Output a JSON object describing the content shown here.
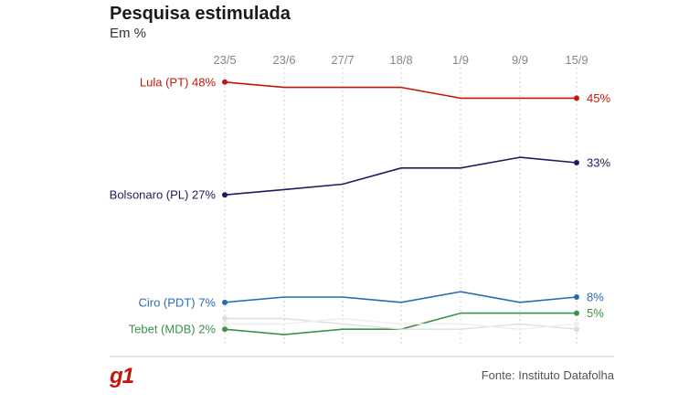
{
  "header": {
    "title": "Pesquisa estimulada",
    "subtitle": "Em %"
  },
  "footer": {
    "logo": "g1",
    "source": "Fonte: Instituto Datafolha"
  },
  "chart_data": {
    "type": "line",
    "title": "Pesquisa estimulada",
    "subtitle": "Em %",
    "x": [
      "23/5",
      "23/6",
      "27/7",
      "18/8",
      "1/9",
      "9/9",
      "15/9"
    ],
    "ylim": [
      0,
      50
    ],
    "grid": "vertical dotted",
    "series": [
      {
        "name": "Lula (PT)",
        "start_label": "Lula (PT) 48%",
        "end_label": "45%",
        "color": "#c4170c",
        "values": [
          48,
          47,
          47,
          47,
          45,
          45,
          45
        ]
      },
      {
        "name": "Bolsonaro (PL)",
        "start_label": "Bolsonaro (PL) 27%",
        "end_label": "33%",
        "color": "#1c1c5e",
        "values": [
          27,
          28,
          29,
          32,
          32,
          34,
          33
        ]
      },
      {
        "name": "Ciro (PDT)",
        "start_label": "Ciro (PDT) 7%",
        "end_label": "8%",
        "color": "#2b6cb0",
        "values": [
          7,
          8,
          8,
          7,
          9,
          7,
          8
        ]
      },
      {
        "name": "Tebet (MDB)",
        "start_label": "Tebet (MDB) 2%",
        "end_label": "5%",
        "color": "#3d9148",
        "values": [
          2,
          1,
          2,
          2,
          5,
          5,
          5
        ]
      },
      {
        "name": "",
        "start_label": "",
        "end_label": "",
        "color": "#dddddd",
        "values": [
          4,
          4,
          3,
          2,
          2,
          3,
          2
        ]
      },
      {
        "name": "",
        "start_label": "",
        "end_label": "",
        "color": "#eeeeee",
        "values": [
          3,
          3,
          4,
          3,
          3,
          2,
          3
        ]
      }
    ]
  }
}
